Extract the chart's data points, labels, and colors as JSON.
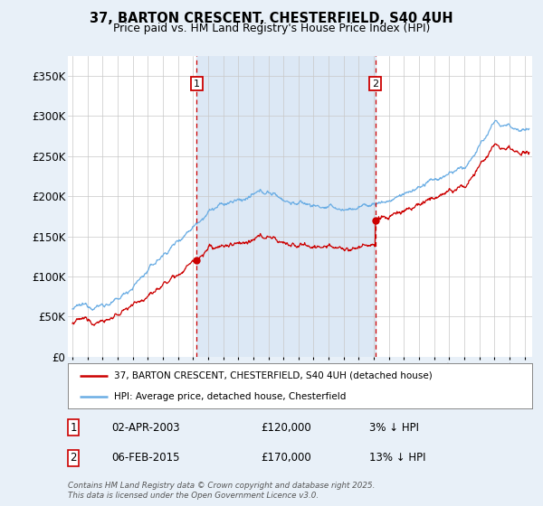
{
  "title": "37, BARTON CRESCENT, CHESTERFIELD, S40 4UH",
  "subtitle": "Price paid vs. HM Land Registry's House Price Index (HPI)",
  "legend_line1": "37, BARTON CRESCENT, CHESTERFIELD, S40 4UH (detached house)",
  "legend_line2": "HPI: Average price, detached house, Chesterfield",
  "sale1_date": "02-APR-2003",
  "sale1_price": 120000,
  "sale1_label": "3% ↓ HPI",
  "sale2_date": "06-FEB-2015",
  "sale2_price": 170000,
  "sale2_label": "13% ↓ HPI",
  "footer": "Contains HM Land Registry data © Crown copyright and database right 2025.\nThis data is licensed under the Open Government Licence v3.0.",
  "hpi_color": "#6aade4",
  "price_color": "#cc0000",
  "vline_color": "#cc0000",
  "shade_color": "#dce8f5",
  "background_color": "#e8f0f8",
  "plot_bg": "#ffffff",
  "grid_color": "#c8c8c8",
  "ylim": [
    0,
    375000
  ],
  "yticks": [
    0,
    50000,
    100000,
    150000,
    200000,
    250000,
    300000,
    350000
  ],
  "xlim_start": 1994.7,
  "xlim_end": 2025.5,
  "marker1_x": 2003.25,
  "marker1_y": 120000,
  "marker2_x": 2015.1,
  "marker2_y": 170000
}
